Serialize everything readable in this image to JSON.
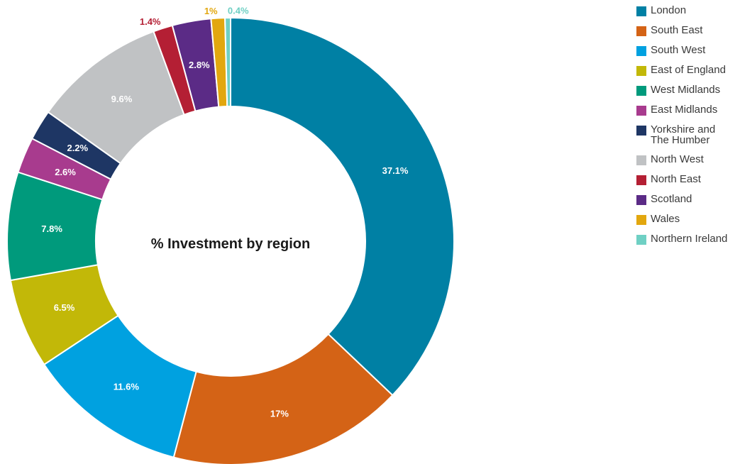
{
  "chart_data": {
    "type": "pie",
    "title": "% Investment by region",
    "categories": [
      "London",
      "South East",
      "South West",
      "East of England",
      "West Midlands",
      "East Midlands",
      "Yorkshire and The Humber",
      "North West",
      "North East",
      "Scotland",
      "Wales",
      "Northern Ireland"
    ],
    "legend_labels": [
      [
        "London"
      ],
      [
        "South East"
      ],
      [
        "South West"
      ],
      [
        "East of England"
      ],
      [
        "West Midlands"
      ],
      [
        "East Midlands"
      ],
      [
        "Yorkshire and",
        "The Humber"
      ],
      [
        "North West"
      ],
      [
        "North East"
      ],
      [
        "Scotland"
      ],
      [
        "Wales"
      ],
      [
        "Northern Ireland"
      ]
    ],
    "values": [
      37.1,
      17,
      11.6,
      6.5,
      7.8,
      2.6,
      2.2,
      9.6,
      1.4,
      2.8,
      1,
      0.4
    ],
    "labels": [
      "37.1%",
      "17%",
      "11.6%",
      "6.5%",
      "7.8%",
      "2.6%",
      "2.2%",
      "9.6%",
      "1.4%",
      "2.8%",
      "1%",
      "0.4%"
    ],
    "colors": [
      "#0080a4",
      "#d46316",
      "#00a1e0",
      "#c2b808",
      "#009a7c",
      "#a83b8e",
      "#1e3664",
      "#c0c2c4",
      "#b41f34",
      "#5b2b86",
      "#e2a70f",
      "#6fd0c4"
    ],
    "label_placement": [
      "inside",
      "inside",
      "inside",
      "inside",
      "inside",
      "inside",
      "inside",
      "inside",
      "outside",
      "inside",
      "outside",
      "outside"
    ],
    "donut": true,
    "legend_position": "right"
  }
}
